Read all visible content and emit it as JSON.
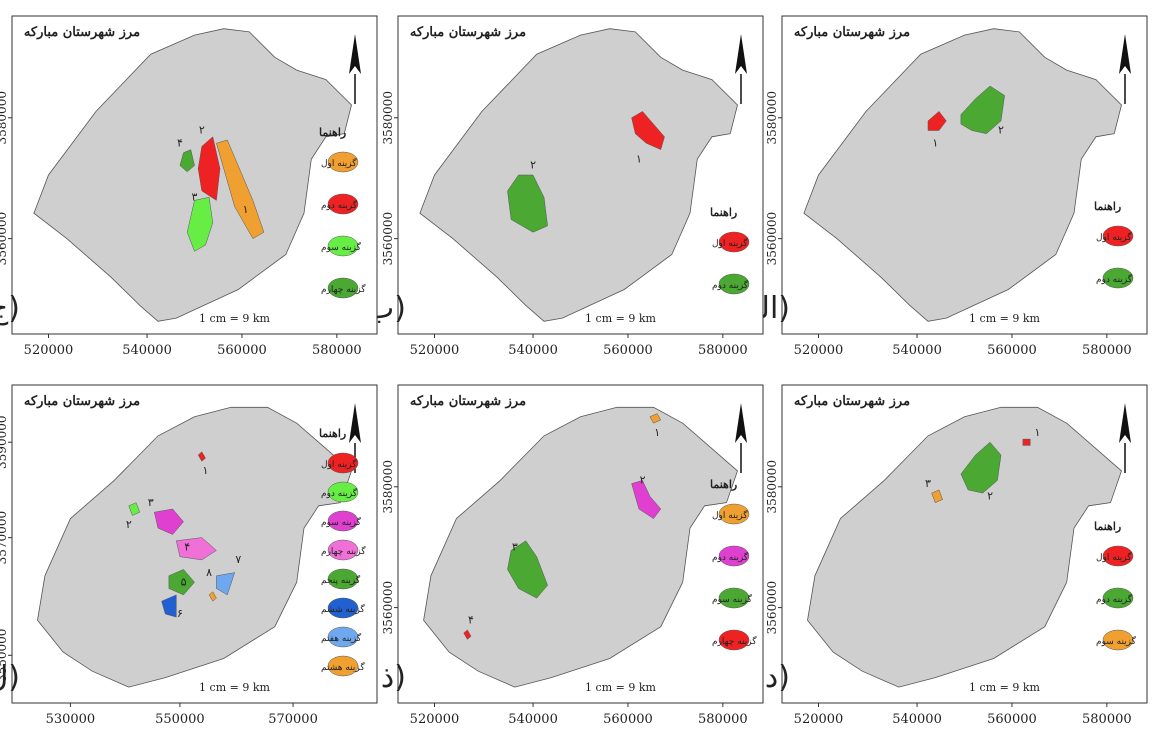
{
  "panels": [
    {
      "id": "alef",
      "title": "مرز شهرستان مبارکه",
      "label": "(الف)",
      "legend_title": "راهنما",
      "legend": [
        {
          "text": "گزینه اول",
          "color": "#ee2222"
        },
        {
          "text": "گزینه دوم",
          "color": "#4aa833"
        }
      ],
      "scale": "1 cm = 9 km",
      "y_ticks": [
        "3580000",
        "3560000"
      ],
      "x_ticks": [
        "520000",
        "540000",
        "560000",
        "580000"
      ],
      "markers": [
        "۱",
        "۲"
      ]
    },
    {
      "id": "be",
      "title": "مرز شهرستان مبارکه",
      "label": "(ب",
      "legend_title": "راهنما",
      "legend": [
        {
          "text": "گزینه اول",
          "color": "#ee2222"
        },
        {
          "text": "گزینه دوم",
          "color": "#4aa833"
        }
      ],
      "scale": "1 cm = 9 km",
      "y_ticks": [
        "3580000",
        "3560000"
      ],
      "x_ticks": [
        "520000",
        "540000",
        "560000",
        "580000"
      ],
      "markers": [
        "۱",
        "۲"
      ]
    },
    {
      "id": "jim",
      "title": "مرز شهرستان مبارکه",
      "label": "(ج",
      "legend_title": "راهنما",
      "legend": [
        {
          "text": "گزینه اول",
          "color": "#f0a030"
        },
        {
          "text": "گزینه دوم",
          "color": "#ee2222"
        },
        {
          "text": "گزینه سوم",
          "color": "#66ee44"
        },
        {
          "text": "گزینه چهارم",
          "color": "#4aa833"
        }
      ],
      "scale": "1 cm = 9 km",
      "y_ticks": [
        "3580000",
        "3560000"
      ],
      "x_ticks": [
        "520000",
        "540000",
        "560000",
        "580000"
      ],
      "markers": [
        "۱",
        "۲",
        "۳",
        "۴"
      ]
    },
    {
      "id": "dal",
      "title": "مرز شهرستان مبارکه",
      "label": "(د",
      "legend_title": "راهنما",
      "legend": [
        {
          "text": "گزینه اول",
          "color": "#ee2222"
        },
        {
          "text": "گزینه دوم",
          "color": "#4aa833"
        },
        {
          "text": "گزینه سوم",
          "color": "#f0a030"
        }
      ],
      "scale": "1 cm = 9 km",
      "y_ticks": [
        "3580000",
        "3560000"
      ],
      "x_ticks": [
        "520000",
        "540000",
        "560000",
        "580000"
      ],
      "markers": [
        "۱",
        "۲",
        "۳"
      ]
    },
    {
      "id": "zal",
      "title": "مرز شهرستان مبارکه",
      "label": "(ذ",
      "legend_title": "راهنما",
      "legend": [
        {
          "text": "گزینه اول",
          "color": "#f0a030"
        },
        {
          "text": "گزینه دوم",
          "color": "#e040d0"
        },
        {
          "text": "گزینه سوم",
          "color": "#4aa833"
        },
        {
          "text": "گزینه چهارم",
          "color": "#ee2222"
        }
      ],
      "scale": "1 cm = 9 km",
      "y_ticks": [
        "3580000",
        "3560000"
      ],
      "x_ticks": [
        "520000",
        "540000",
        "560000",
        "580000"
      ],
      "markers": [
        "۱",
        "۲",
        "۳",
        "۴"
      ]
    },
    {
      "id": "lam",
      "title": "مرز شهرستان مبارکه",
      "label": "(ل",
      "legend_title": "راهنما",
      "legend": [
        {
          "text": "گزینه اول",
          "color": "#ee2222"
        },
        {
          "text": "گزینه دوم",
          "color": "#66ee44"
        },
        {
          "text": "گزینه سوم",
          "color": "#e040d0"
        },
        {
          "text": "گزینه چهارم",
          "color": "#f070d8"
        },
        {
          "text": "گزینه پنجم",
          "color": "#4aa833"
        },
        {
          "text": "گزینه ششم",
          "color": "#2060d0"
        },
        {
          "text": "گزینه هفتم",
          "color": "#70a8f0"
        },
        {
          "text": "گزینه هشتم",
          "color": "#f0a030"
        }
      ],
      "scale": "1 cm = 9 km",
      "y_ticks": [
        "3590000",
        "3570000",
        "3550000"
      ],
      "x_ticks": [
        "530000",
        "550000",
        "570000"
      ],
      "markers": [
        "۱",
        "۲",
        "۳",
        "۴",
        "۵",
        "۶",
        "۷",
        "۸"
      ]
    }
  ],
  "colors": {
    "county_fill": "#cfcfcf",
    "frame": "#333333"
  }
}
